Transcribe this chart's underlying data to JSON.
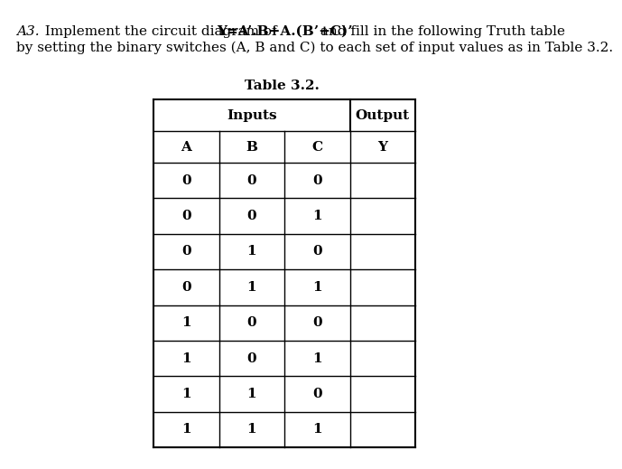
{
  "line1_italic": "A3.",
  "line1_normal": "  Implement the circuit diagram of ",
  "line1_bold": "Y=A’.B+A.(B’+C)’",
  "line1_normal2": " and fill in the following Truth table",
  "line2": "by setting the binary switches (A, B and C) to each set of input values as in Table 3.2.",
  "table_title": "Table 3.2.",
  "col_headers": [
    "A",
    "B",
    "C",
    "Y"
  ],
  "group_headers": [
    "Inputs",
    "Output"
  ],
  "rows": [
    [
      "0",
      "0",
      "0",
      ""
    ],
    [
      "0",
      "0",
      "1",
      ""
    ],
    [
      "0",
      "1",
      "0",
      ""
    ],
    [
      "0",
      "1",
      "1",
      ""
    ],
    [
      "1",
      "0",
      "0",
      ""
    ],
    [
      "1",
      "0",
      "1",
      ""
    ],
    [
      "1",
      "1",
      "0",
      ""
    ],
    [
      "1",
      "1",
      "1",
      ""
    ]
  ],
  "bg_color": "#ffffff",
  "text_color": "#000000",
  "inputs_span": [
    0,
    3
  ],
  "output_span": [
    3,
    4
  ]
}
